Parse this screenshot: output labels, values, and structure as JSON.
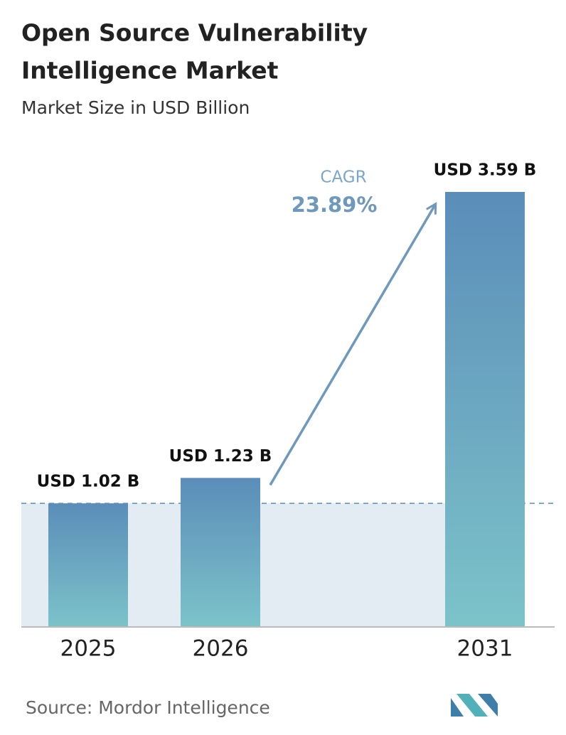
{
  "chart_data": {
    "type": "bar",
    "title_lines": [
      "Open Source Vulnerability",
      "Intelligence Market"
    ],
    "subtitle": "Market Size in USD Billion",
    "categories": [
      "2025",
      "2026",
      "2031"
    ],
    "values": [
      1.02,
      1.23,
      3.59
    ],
    "value_labels": [
      "USD 1.02 B",
      "USD 1.23 B",
      "USD 3.59 B"
    ],
    "colors": [
      "#5b8db9",
      "#7cc3c9"
    ],
    "ylim": [
      0,
      3.59
    ],
    "annotation": {
      "label": "CAGR",
      "value": "23.89%"
    },
    "source": "Source: Mordor Intelligence"
  }
}
